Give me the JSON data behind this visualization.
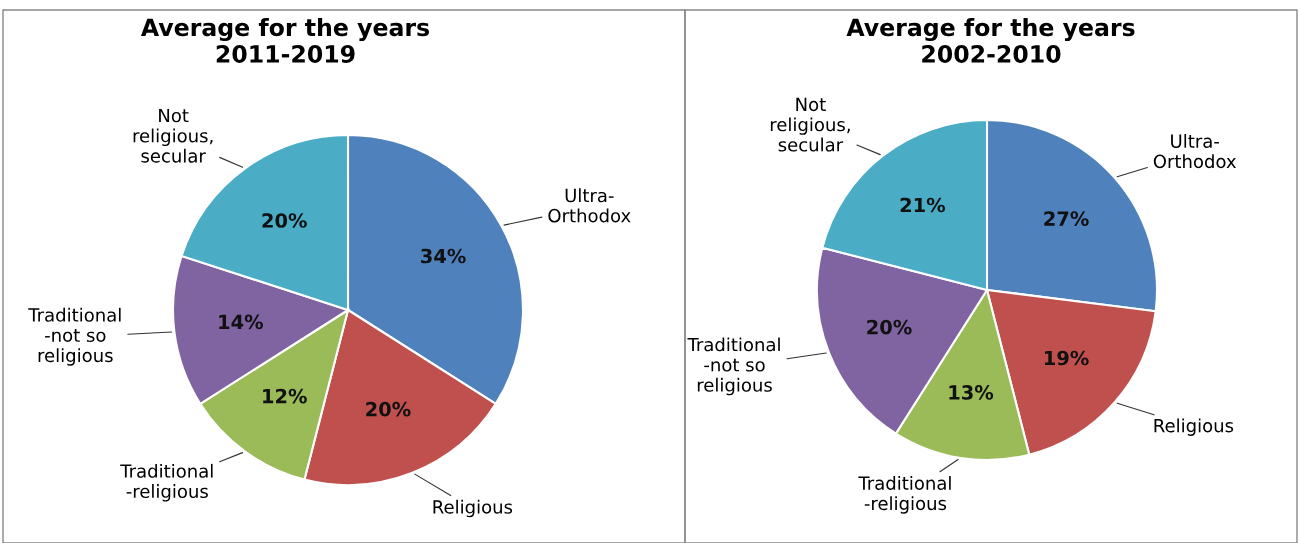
{
  "chart_data": [
    {
      "type": "pie",
      "title": "Average for the years\n2011-2019",
      "categories": [
        "Ultra-\nOrthodox",
        "Religious",
        "Traditional\n-religious",
        "Traditional\n-not so\nreligious",
        "Not\nreligious,\nsecular"
      ],
      "values": [
        34,
        20,
        12,
        14,
        20
      ],
      "value_labels": [
        "34%",
        "20%",
        "12%",
        "14%",
        "20%"
      ],
      "colors": [
        "#4f81bd",
        "#c0504d",
        "#9bbb59",
        "#8064a2",
        "#4bacc6"
      ]
    },
    {
      "type": "pie",
      "title": "Average for the years\n2002-2010",
      "categories": [
        "Ultra-\nOrthodox",
        "Religious",
        "Traditional\n-religious",
        "Traditional\n-not so\nreligious",
        "Not\nreligious,\nsecular"
      ],
      "values": [
        27,
        19,
        13,
        20,
        21
      ],
      "value_labels": [
        "27%",
        "19%",
        "13%",
        "20%",
        "21%"
      ],
      "colors": [
        "#4f81bd",
        "#c0504d",
        "#9bbb59",
        "#8064a2",
        "#4bacc6"
      ]
    }
  ]
}
